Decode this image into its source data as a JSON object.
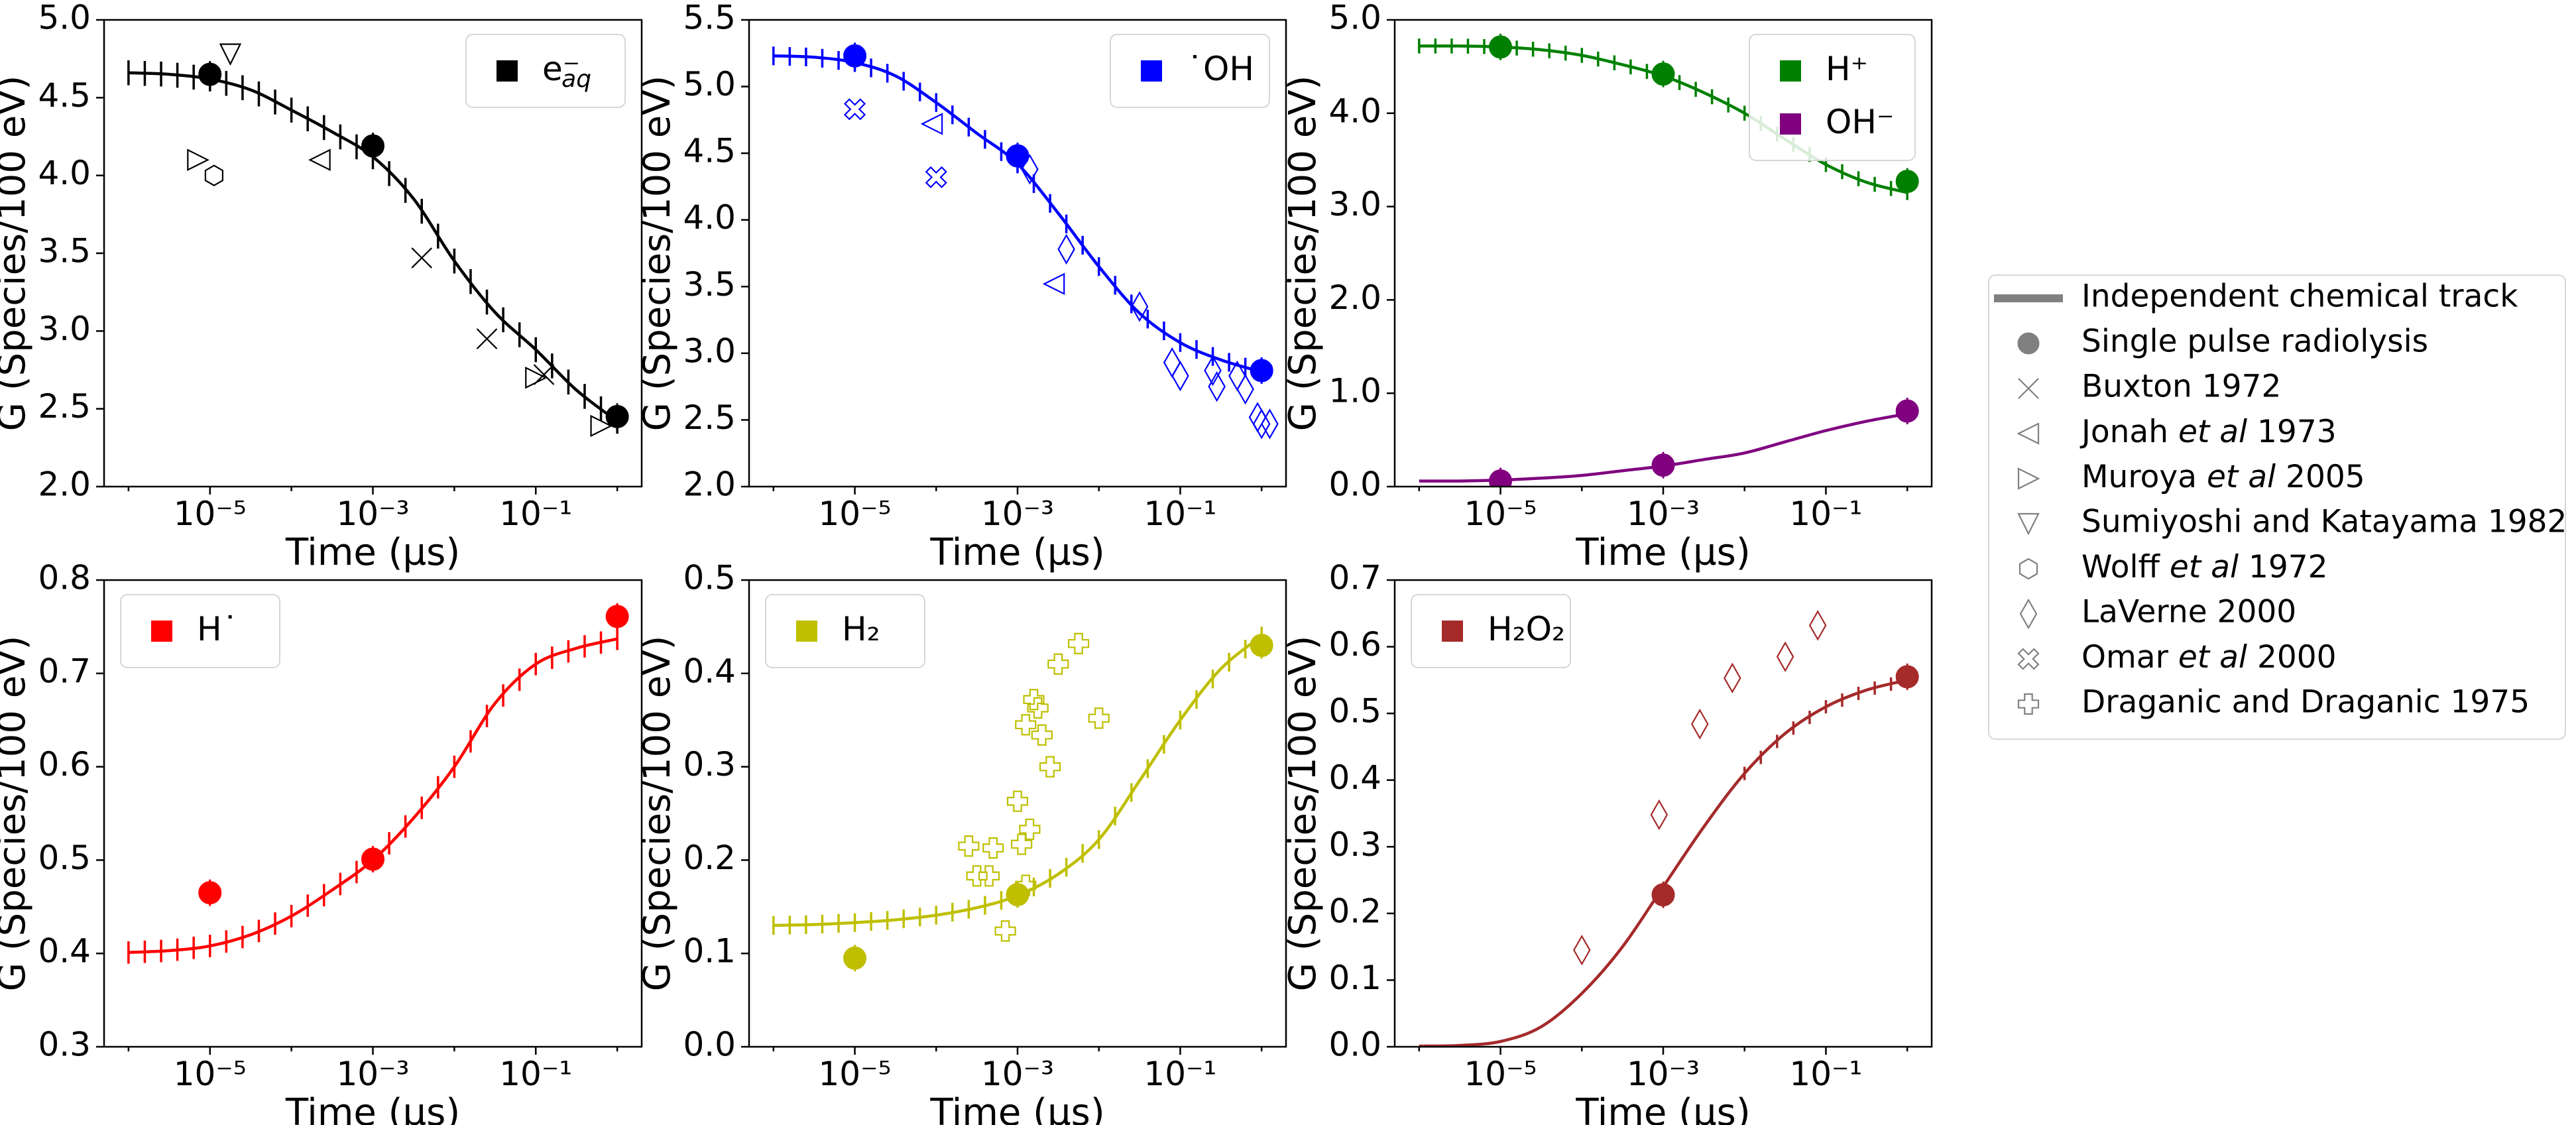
{
  "figure": {
    "shared_legend": [
      {
        "label": "Independent chemical track",
        "marker": "line"
      },
      {
        "label": "Single pulse radiolysis",
        "marker": "circle"
      },
      {
        "label": "Buxton 1972",
        "marker": "x"
      },
      {
        "label": "Jonah et al 1973",
        "marker": "tri-left",
        "rich": [
          "Jonah ",
          "et al",
          " 1973"
        ]
      },
      {
        "label": "Muroya et al 2005",
        "marker": "tri-right",
        "rich": [
          "Muroya ",
          "et al",
          " 2005"
        ]
      },
      {
        "label": "Sumiyoshi and Katayama 1982",
        "marker": "tri-down"
      },
      {
        "label": "Wolff et al 1972",
        "marker": "hexagon",
        "rich": [
          "Wolff ",
          "et al",
          " 1972"
        ]
      },
      {
        "label": "LaVerne 2000",
        "marker": "diamond"
      },
      {
        "label": "Omar et al 2000",
        "marker": "xfilled",
        "rich": [
          "Omar ",
          "et al",
          " 2000"
        ]
      },
      {
        "label": "Draganic and Draganic 1975",
        "marker": "plus"
      }
    ],
    "legend_color": "#808080"
  },
  "chart_data": [
    {
      "type": "line",
      "panel": "e_aq",
      "color": "#000000",
      "xlabel": "Time (µs)",
      "ylabel": "G (Species/100 eV)",
      "xscale": "log",
      "xlim_exp": [
        -6.3,
        0.3
      ],
      "xticks": [
        "10⁻⁵",
        "10⁻³",
        "10⁻¹"
      ],
      "xtick_exp": [
        -5,
        -3,
        -1
      ],
      "ylim": [
        2.0,
        5.0
      ],
      "yticks": [
        "2.0",
        "2.5",
        "3.0",
        "3.5",
        "4.0",
        "4.5",
        "5.0"
      ],
      "legend": [
        {
          "label": "e⁻",
          "sub": "aq",
          "color": "#000000"
        }
      ],
      "series": [
        {
          "name": "Independent chemical track",
          "color": "#000000",
          "x_exp": [
            -6,
            -5.5,
            -5,
            -4.5,
            -4,
            -3.5,
            -3,
            -2.5,
            -2,
            -1.5,
            -1,
            -0.5,
            0
          ],
          "y": [
            4.66,
            4.65,
            4.62,
            4.55,
            4.42,
            4.28,
            4.12,
            3.85,
            3.45,
            3.12,
            2.88,
            2.62,
            2.42
          ],
          "errorbars": true,
          "err": 0.08
        }
      ],
      "pulse": {
        "x_exp": [
          -5,
          -3,
          0
        ],
        "y": [
          4.65,
          4.19,
          2.45
        ]
      },
      "experimental": [
        {
          "marker": "tri-down",
          "x_exp": [
            -4.75
          ],
          "y": [
            4.78
          ]
        },
        {
          "marker": "tri-right",
          "x_exp": [
            -5.15,
            -1.0,
            -0.2
          ],
          "y": [
            4.1,
            2.7,
            2.39
          ]
        },
        {
          "marker": "hexagon",
          "x_exp": [
            -4.95
          ],
          "y": [
            4.0
          ]
        },
        {
          "marker": "tri-left",
          "x_exp": [
            -3.65
          ],
          "y": [
            4.1
          ]
        },
        {
          "marker": "x",
          "x_exp": [
            -2.4,
            -1.6,
            -0.9
          ],
          "y": [
            3.47,
            2.95,
            2.72
          ]
        }
      ]
    },
    {
      "type": "line",
      "panel": "OH",
      "color": "#0000ff",
      "xlabel": "Time (µs)",
      "ylabel": "G (Species/100 eV)",
      "xscale": "log",
      "xlim_exp": [
        -6.3,
        0.3
      ],
      "xticks": [
        "10⁻⁵",
        "10⁻³",
        "10⁻¹"
      ],
      "xtick_exp": [
        -5,
        -3,
        -1
      ],
      "ylim": [
        2.0,
        5.5
      ],
      "yticks": [
        "2.0",
        "2.5",
        "3.0",
        "3.5",
        "4.0",
        "4.5",
        "5.0",
        "5.5"
      ],
      "legend": [
        {
          "label": "˙OH",
          "color": "#0000ff"
        }
      ],
      "series": [
        {
          "name": "Independent chemical track",
          "color": "#0000ff",
          "x_exp": [
            -6,
            -5.5,
            -5,
            -4.5,
            -4,
            -3.5,
            -3,
            -2.5,
            -2,
            -1.5,
            -1,
            -0.5,
            0
          ],
          "y": [
            5.23,
            5.22,
            5.18,
            5.08,
            4.88,
            4.65,
            4.42,
            4.05,
            3.65,
            3.3,
            3.08,
            2.95,
            2.86
          ],
          "errorbars": true,
          "err": 0.07
        }
      ],
      "pulse": {
        "x_exp": [
          -5,
          -3,
          0
        ],
        "y": [
          5.23,
          4.48,
          2.87
        ]
      },
      "experimental": [
        {
          "marker": "xfilled",
          "x_exp": [
            -5.0,
            -4.0
          ],
          "y": [
            4.83,
            4.32
          ]
        },
        {
          "marker": "tri-left",
          "x_exp": [
            -4.05,
            -2.55
          ],
          "y": [
            4.72,
            3.52
          ]
        },
        {
          "marker": "diamond",
          "x_exp": [
            -2.85,
            -2.4,
            -1.5,
            -1.1,
            -1.0,
            -0.6,
            -0.55,
            -0.3,
            -0.2,
            0.0,
            0.1,
            -0.05
          ],
          "y": [
            4.38,
            3.78,
            3.35,
            2.93,
            2.83,
            2.87,
            2.75,
            2.83,
            2.73,
            2.47,
            2.47,
            2.52
          ]
        }
      ]
    },
    {
      "type": "line",
      "panel": "H+ and OH-",
      "color": "#008000",
      "xlabel": "Time (µs)",
      "ylabel": "G (Species/100 eV)",
      "xscale": "log",
      "xlim_exp": [
        -6.3,
        0.3
      ],
      "xticks": [
        "10⁻⁵",
        "10⁻³",
        "10⁻¹"
      ],
      "xtick_exp": [
        -5,
        -3,
        -1
      ],
      "ylim": [
        0.0,
        5.0
      ],
      "yticks": [
        "0.0",
        "1.0",
        "2.0",
        "3.0",
        "4.0",
        "5.0"
      ],
      "legend": [
        {
          "label": "H⁺",
          "color": "#008000"
        },
        {
          "label": "OH⁻",
          "color": "#800080"
        }
      ],
      "series": [
        {
          "name": "H+",
          "color": "#008000",
          "x_exp": [
            -6,
            -5.5,
            -5,
            -4.5,
            -4,
            -3.5,
            -3,
            -2.5,
            -2,
            -1.5,
            -1,
            -0.5,
            0
          ],
          "y": [
            4.72,
            4.72,
            4.71,
            4.68,
            4.62,
            4.52,
            4.4,
            4.22,
            4.0,
            3.72,
            3.45,
            3.26,
            3.15
          ],
          "errorbars": true,
          "err": 0.08
        },
        {
          "name": "OH-",
          "color": "#800080",
          "x_exp": [
            -6,
            -5.5,
            -5,
            -4.5,
            -4,
            -3.5,
            -3,
            -2.5,
            -2,
            -1.5,
            -1,
            -0.5,
            0
          ],
          "y": [
            0.06,
            0.06,
            0.07,
            0.09,
            0.12,
            0.17,
            0.22,
            0.29,
            0.36,
            0.48,
            0.6,
            0.7,
            0.78
          ],
          "errorbars": false,
          "err": 0
        }
      ],
      "pulse_multi": [
        {
          "color": "#008000",
          "x_exp": [
            -5,
            -3,
            0
          ],
          "y": [
            4.71,
            4.42,
            3.27
          ]
        },
        {
          "color": "#800080",
          "x_exp": [
            -5,
            -3,
            0
          ],
          "y": [
            0.06,
            0.23,
            0.81
          ]
        }
      ],
      "experimental": []
    },
    {
      "type": "line",
      "panel": "H",
      "color": "#ff0000",
      "xlabel": "Time (µs)",
      "ylabel": "G (Species/100 eV)",
      "xscale": "log",
      "xlim_exp": [
        -6.3,
        0.3
      ],
      "xticks": [
        "10⁻⁵",
        "10⁻³",
        "10⁻¹"
      ],
      "xtick_exp": [
        -5,
        -3,
        -1
      ],
      "ylim": [
        0.3,
        0.8
      ],
      "yticks": [
        "0.3",
        "0.4",
        "0.5",
        "0.6",
        "0.7",
        "0.8"
      ],
      "legend": [
        {
          "label": "H˙",
          "color": "#ff0000"
        }
      ],
      "series": [
        {
          "name": "Independent chemical track",
          "color": "#ff0000",
          "x_exp": [
            -6,
            -5.5,
            -5,
            -4.5,
            -4,
            -3.5,
            -3,
            -2.5,
            -2,
            -1.5,
            -1,
            -0.5,
            0
          ],
          "y": [
            0.401,
            0.403,
            0.408,
            0.42,
            0.44,
            0.468,
            0.5,
            0.545,
            0.6,
            0.668,
            0.71,
            0.727,
            0.737
          ],
          "errorbars": true,
          "err": 0.012
        }
      ],
      "pulse": {
        "x_exp": [
          -5,
          -3,
          0
        ],
        "y": [
          0.465,
          0.501,
          0.761
        ]
      },
      "experimental": []
    },
    {
      "type": "line",
      "panel": "H2",
      "color": "#bfbf00",
      "xlabel": "Time (µs)",
      "ylabel": "G (Species/100 eV)",
      "xscale": "log",
      "xlim_exp": [
        -6.3,
        0.3
      ],
      "xticks": [
        "10⁻⁵",
        "10⁻³",
        "10⁻¹"
      ],
      "xtick_exp": [
        -5,
        -3,
        -1
      ],
      "ylim": [
        0.0,
        0.5
      ],
      "yticks": [
        "0.0",
        "0.1",
        "0.2",
        "0.3",
        "0.4",
        "0.5"
      ],
      "legend": [
        {
          "label": "H₂",
          "color": "#bfbf00"
        }
      ],
      "series": [
        {
          "name": "Independent chemical track",
          "color": "#bfbf00",
          "x_exp": [
            -6,
            -5.5,
            -5,
            -4.5,
            -4,
            -3.5,
            -3,
            -2.5,
            -2,
            -1.5,
            -1,
            -0.5,
            0
          ],
          "y": [
            0.13,
            0.131,
            0.133,
            0.136,
            0.141,
            0.149,
            0.162,
            0.185,
            0.222,
            0.285,
            0.35,
            0.405,
            0.44
          ],
          "errorbars": true,
          "err": 0.01
        }
      ],
      "pulse": {
        "x_exp": [
          -5,
          -3,
          0
        ],
        "y": [
          0.095,
          0.163,
          0.43
        ]
      },
      "experimental": [
        {
          "marker": "plus",
          "x_exp": [
            -3.5,
            -3.35,
            -3.15,
            -3.3,
            -3.0,
            -2.95,
            -2.9,
            -2.85,
            -2.8,
            -2.75,
            -2.7,
            -2.6,
            -2.5,
            -2.25,
            -2.0,
            -2.9,
            -3.6
          ],
          "y": [
            0.183,
            0.183,
            0.124,
            0.213,
            0.263,
            0.217,
            0.173,
            0.233,
            0.372,
            0.363,
            0.334,
            0.3,
            0.41,
            0.432,
            0.352,
            0.345,
            0.215
          ]
        }
      ]
    },
    {
      "type": "line",
      "panel": "H2O2",
      "color": "#a52a2a",
      "xlabel": "Time (µs)",
      "ylabel": "G (Species/100 eV)",
      "xscale": "log",
      "xlim_exp": [
        -6.3,
        0.3
      ],
      "xticks": [
        "10⁻⁵",
        "10⁻³",
        "10⁻¹"
      ],
      "xtick_exp": [
        -5,
        -3,
        -1
      ],
      "ylim": [
        0.0,
        0.7
      ],
      "yticks": [
        "0.0",
        "0.1",
        "0.2",
        "0.3",
        "0.4",
        "0.5",
        "0.6",
        "0.7"
      ],
      "legend": [
        {
          "label": "H₂O₂",
          "color": "#a52a2a"
        }
      ],
      "series": [
        {
          "name": "Independent chemical track",
          "color": "#a52a2a",
          "x_exp": [
            -6,
            -5.5,
            -5,
            -4.5,
            -4,
            -3.5,
            -3,
            -2.5,
            -2,
            -1.5,
            -1,
            -0.5,
            0
          ],
          "y": [
            0.001,
            0.002,
            0.008,
            0.03,
            0.08,
            0.15,
            0.24,
            0.33,
            0.41,
            0.47,
            0.51,
            0.535,
            0.55
          ],
          "errorbars": true,
          "err": 0.01,
          "err_from_exp": -2
        }
      ],
      "pulse": {
        "x_exp": [
          -3,
          0
        ],
        "y": [
          0.228,
          0.555
        ]
      },
      "experimental": [
        {
          "marker": "diamond",
          "x_exp": [
            -4.0,
            -3.05,
            -2.55,
            -2.15,
            -1.5,
            -1.1
          ],
          "y": [
            0.145,
            0.348,
            0.484,
            0.553,
            0.585,
            0.632
          ]
        }
      ]
    }
  ]
}
